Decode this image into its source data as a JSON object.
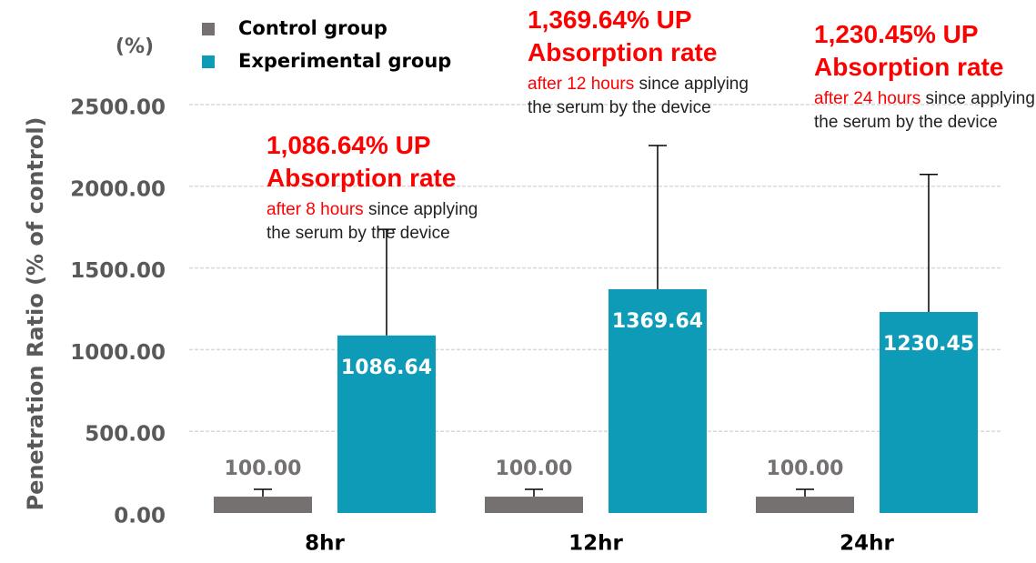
{
  "chart_data": {
    "type": "bar",
    "unit_label": "(%)",
    "y_label": "Penetration Ratio (% of control)",
    "categories": [
      "8hr",
      "12hr",
      "24hr"
    ],
    "series": [
      {
        "name": "Control group",
        "color": "#767171",
        "values": [
          100,
          100,
          100
        ],
        "value_labels": [
          "100.00",
          "100.00",
          "100.00"
        ],
        "errors": [
          45,
          45,
          45
        ]
      },
      {
        "name": "Experimental group",
        "color": "#0e9bb8",
        "values": [
          1086.64,
          1369.64,
          1230.45
        ],
        "value_labels": [
          "1086.64",
          "1369.64",
          "1230.45"
        ],
        "errors": [
          650,
          880,
          842
        ]
      }
    ],
    "ylim": [
      0,
      2500
    ],
    "yticks": [
      {
        "value": 0,
        "label": "0.00"
      },
      {
        "value": 500,
        "label": "500.00"
      },
      {
        "value": 1000,
        "label": "1000.00"
      },
      {
        "value": 1500,
        "label": "1500.00"
      },
      {
        "value": 2000,
        "label": "2000.00"
      },
      {
        "value": 2500,
        "label": "2500.00"
      }
    ],
    "grid": true,
    "legend": "top-left",
    "annotations": [
      {
        "headline": "1,086.64% UP",
        "subhead": "Absorption rate",
        "highlight": "after 8 hours",
        "text": "since applying the serum by the device"
      },
      {
        "headline": "1,369.64% UP",
        "subhead": "Absorption rate",
        "highlight": "after 12 hours",
        "text": "since applying the serum by the device"
      },
      {
        "headline": "1,230.45% UP",
        "subhead": "Absorption rate",
        "highlight": "after 24 hours",
        "text": "since applying the serum by the device"
      }
    ]
  }
}
